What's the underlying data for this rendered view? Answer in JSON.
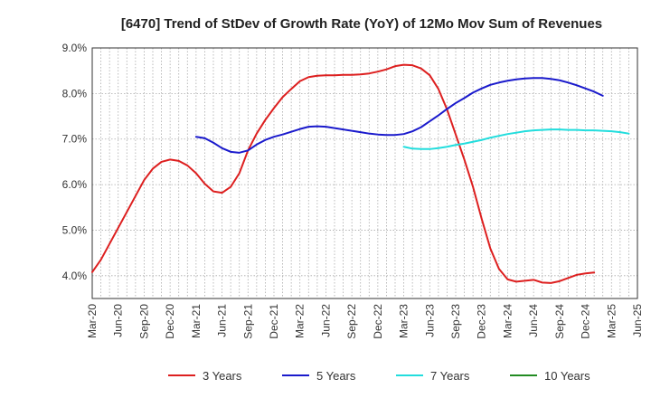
{
  "chart_data": {
    "type": "line",
    "title": "[6470]  Trend of StDev of Growth Rate (YoY) of 12Mo Mov Sum of Revenues",
    "xlabel": "",
    "ylabel": "",
    "ylim": [
      3.5,
      9.0
    ],
    "yticks": [
      4.0,
      5.0,
      6.0,
      7.0,
      8.0,
      9.0
    ],
    "ytick_labels": [
      "4.0%",
      "5.0%",
      "6.0%",
      "7.0%",
      "8.0%",
      "9.0%"
    ],
    "xtick_labels": [
      "Mar-20",
      "Jun-20",
      "Sep-20",
      "Dec-20",
      "Mar-21",
      "Jun-21",
      "Sep-21",
      "Dec-21",
      "Mar-22",
      "Jun-22",
      "Sep-22",
      "Dec-22",
      "Mar-23",
      "Jun-23",
      "Sep-23",
      "Dec-23",
      "Mar-24",
      "Jun-24",
      "Sep-24",
      "Dec-24",
      "Mar-25",
      "Jun-25"
    ],
    "grid": true,
    "legend_position": "bottom",
    "series": [
      {
        "name": "3 Years",
        "color": "#dd1f1f",
        "start_month": 0,
        "values": [
          4.08,
          4.35,
          4.7,
          5.05,
          5.4,
          5.75,
          6.1,
          6.35,
          6.5,
          6.55,
          6.52,
          6.42,
          6.25,
          6.02,
          5.85,
          5.82,
          5.95,
          6.25,
          6.75,
          7.12,
          7.42,
          7.68,
          7.92,
          8.1,
          8.27,
          8.36,
          8.39,
          8.4,
          8.4,
          8.41,
          8.41,
          8.42,
          8.44,
          8.48,
          8.53,
          8.6,
          8.63,
          8.62,
          8.55,
          8.4,
          8.1,
          7.65,
          7.1,
          6.55,
          5.95,
          5.25,
          4.6,
          4.15,
          3.92,
          3.87,
          3.89,
          3.91,
          3.85,
          3.84,
          3.88,
          3.95,
          4.02,
          4.05,
          4.07
        ]
      },
      {
        "name": "5 Years",
        "color": "#1a1acc",
        "start_month": 12,
        "values": [
          7.05,
          7.02,
          6.92,
          6.8,
          6.72,
          6.7,
          6.75,
          6.88,
          6.98,
          7.05,
          7.1,
          7.16,
          7.22,
          7.27,
          7.28,
          7.27,
          7.24,
          7.21,
          7.18,
          7.15,
          7.12,
          7.1,
          7.09,
          7.09,
          7.11,
          7.17,
          7.26,
          7.39,
          7.52,
          7.66,
          7.79,
          7.9,
          8.02,
          8.11,
          8.19,
          8.24,
          8.28,
          8.31,
          8.33,
          8.34,
          8.34,
          8.32,
          8.29,
          8.24,
          8.18,
          8.11,
          8.04,
          7.95
        ]
      },
      {
        "name": "7 Years",
        "color": "#22dddd",
        "start_month": 36,
        "values": [
          6.83,
          6.79,
          6.78,
          6.78,
          6.8,
          6.83,
          6.87,
          6.9,
          6.94,
          6.98,
          7.03,
          7.07,
          7.11,
          7.14,
          7.17,
          7.19,
          7.2,
          7.21,
          7.21,
          7.2,
          7.2,
          7.19,
          7.19,
          7.18,
          7.17,
          7.15,
          7.12
        ]
      },
      {
        "name": "10 Years",
        "color": "#228b22",
        "start_month": 0,
        "values": []
      }
    ]
  }
}
